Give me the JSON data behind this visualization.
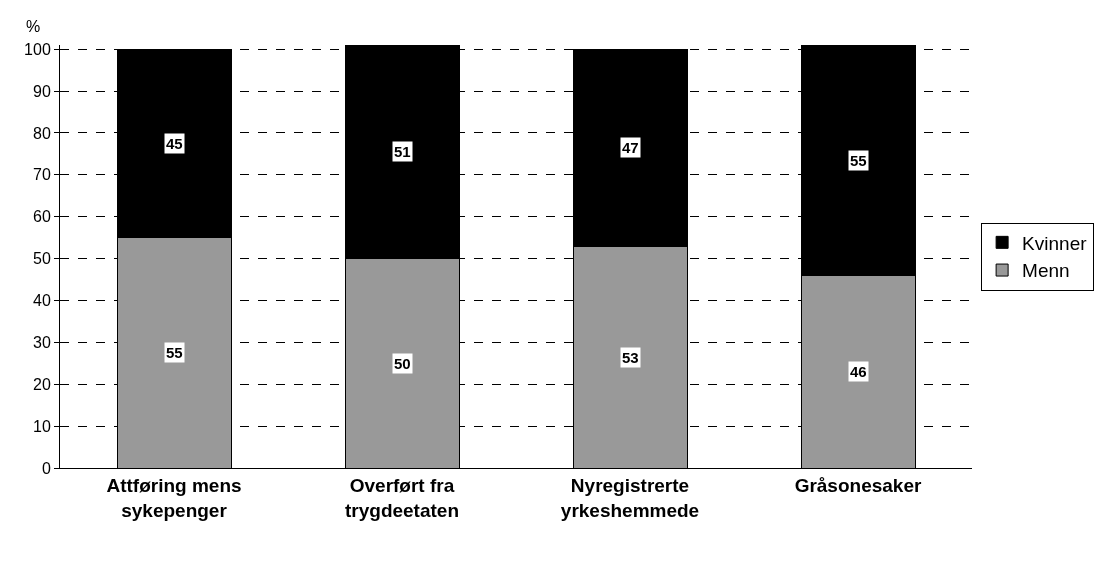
{
  "chart_data": {
    "type": "bar",
    "stacked": true,
    "ylabel": "%",
    "categories": [
      "Attføring mens sykepenger",
      "Overført fra trygdeetaten",
      "Nyregistrerte yrkeshemmede",
      "Gråsonesaker"
    ],
    "series": [
      {
        "name": "Menn",
        "color": "#999999",
        "values": [
          55,
          50,
          53,
          46
        ]
      },
      {
        "name": "Kvinner",
        "color": "#000000",
        "values": [
          45,
          51,
          47,
          55
        ]
      }
    ],
    "ylim": [
      0,
      101
    ],
    "yticks": [
      0,
      10,
      20,
      30,
      40,
      50,
      60,
      70,
      80,
      90,
      100
    ],
    "grid": "y",
    "legend": "right",
    "data_labels": true
  }
}
